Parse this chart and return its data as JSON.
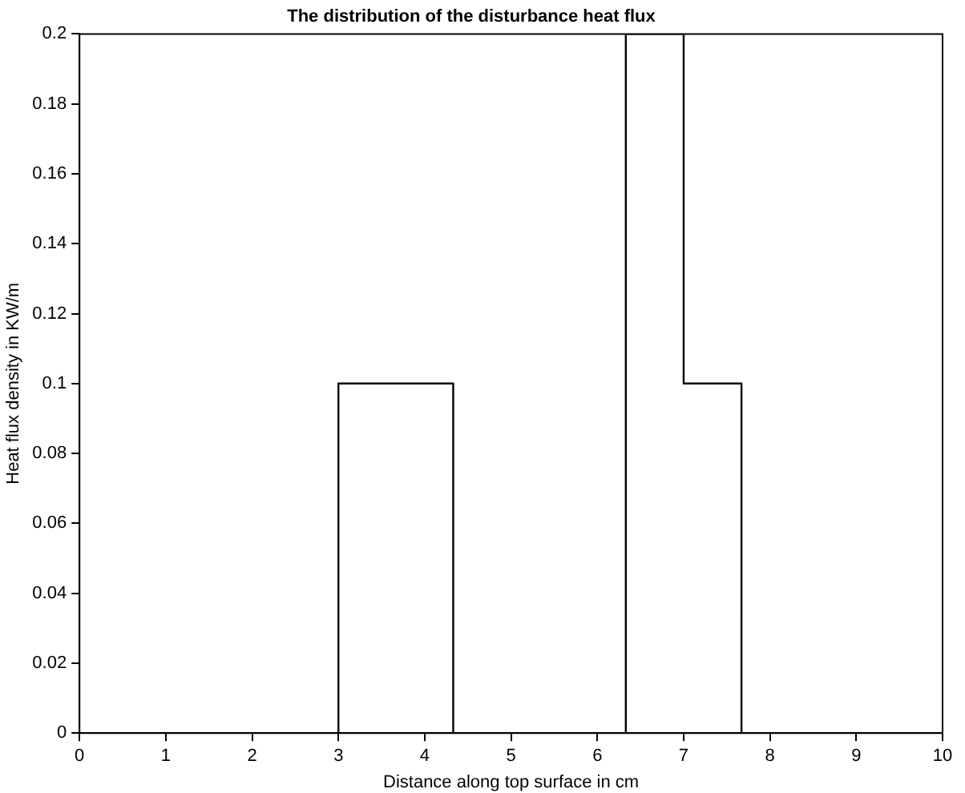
{
  "chart_data": {
    "type": "step",
    "title": "The distribution of the disturbance heat flux",
    "xlabel": "Distance along top surface in cm",
    "ylabel": "Heat flux density in KW/m",
    "x": [
      0,
      3,
      4.33,
      6.33,
      7,
      7.67,
      10
    ],
    "series": [
      {
        "color": "#000000",
        "values": [
          0,
          0.1,
          0,
          0.2,
          0.1,
          0,
          0
        ]
      }
    ],
    "xlim": [
      0,
      10
    ],
    "xticks": [
      0,
      1,
      2,
      3,
      4,
      5,
      6,
      7,
      8,
      9,
      10
    ],
    "ylim": [
      0,
      0.2
    ],
    "yticks": [
      0,
      0.02,
      0.04,
      0.06,
      0.08,
      0.1,
      0.12,
      0.14,
      0.16,
      0.18,
      0.2
    ],
    "grid": false,
    "legend": false,
    "marker": "none",
    "line_style": "solid"
  }
}
